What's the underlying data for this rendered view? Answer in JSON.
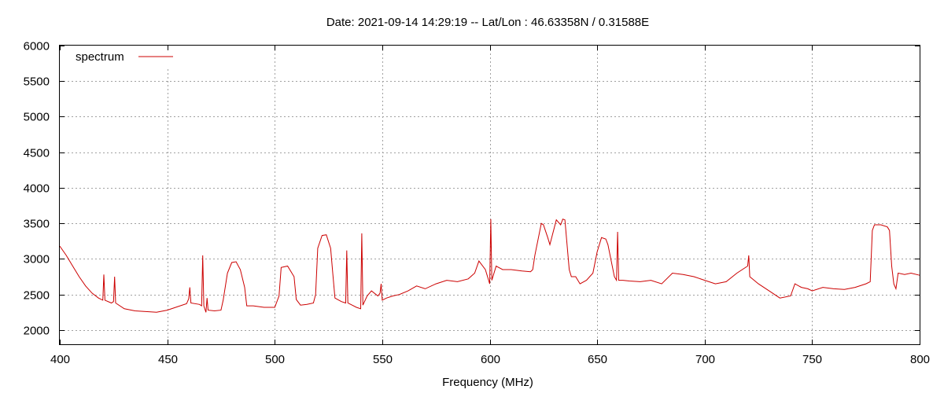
{
  "chart_data": {
    "type": "line",
    "title": "Date: 2021-09-14 14:29:19  --  Lat/Lon : 46.63358N / 0.31588E",
    "xlabel": "Frequency (MHz)",
    "ylabel": "",
    "xlim": [
      400,
      800
    ],
    "ylim": [
      1800,
      6000
    ],
    "xticks": [
      400,
      450,
      500,
      550,
      600,
      650,
      700,
      750,
      800
    ],
    "yticks": [
      2000,
      2500,
      3000,
      3500,
      4000,
      4500,
      5000,
      5500,
      6000
    ],
    "grid": true,
    "legend_position": "top-left",
    "series": [
      {
        "name": "spectrum",
        "color": "#cc0000",
        "x": [
          400,
          403,
          406,
          409,
          412,
          415,
          418,
          420,
          420.5,
          421,
          424,
          425,
          425.5,
          426,
          430,
          435,
          440,
          445,
          450,
          455,
          459,
          460,
          460.5,
          461,
          465,
          466,
          466.5,
          467,
          468,
          468.5,
          469,
          472,
          475,
          476,
          478,
          480,
          482,
          484,
          486,
          487,
          490,
          495,
          500,
          502,
          503,
          506,
          509,
          510,
          512,
          515,
          518,
          519,
          520,
          522,
          524,
          526,
          527,
          528,
          531,
          533,
          533.5,
          534,
          536,
          538,
          540,
          540.5,
          541,
          543,
          545,
          548,
          549,
          549.5,
          550,
          552,
          555,
          558,
          562,
          566,
          570,
          575,
          580,
          585,
          590,
          593,
          595,
          598,
          600,
          600.5,
          601,
          603,
          606,
          610,
          615,
          619,
          620,
          621,
          624,
          625,
          627,
          628,
          631,
          633,
          634,
          635,
          637,
          638,
          640,
          642,
          645,
          648,
          650,
          652,
          654,
          655,
          658,
          659,
          659.5,
          660,
          662,
          665,
          670,
          675,
          680,
          685,
          690,
          695,
          700,
          705,
          710,
          715,
          720,
          720.5,
          721,
          725,
          730,
          735,
          740,
          742,
          745,
          748,
          750,
          755,
          760,
          765,
          770,
          775,
          777,
          778,
          779,
          782,
          785,
          786,
          787,
          788,
          789,
          790,
          793,
          796,
          800
        ],
        "values": [
          3180,
          3050,
          2900,
          2750,
          2620,
          2520,
          2450,
          2420,
          2780,
          2420,
          2380,
          2400,
          2750,
          2380,
          2300,
          2270,
          2260,
          2250,
          2280,
          2330,
          2370,
          2440,
          2600,
          2380,
          2360,
          2340,
          3050,
          2340,
          2250,
          2450,
          2280,
          2270,
          2280,
          2420,
          2800,
          2950,
          2960,
          2850,
          2600,
          2340,
          2340,
          2320,
          2320,
          2480,
          2880,
          2900,
          2750,
          2430,
          2350,
          2360,
          2380,
          2500,
          3150,
          3330,
          3340,
          3150,
          2800,
          2450,
          2400,
          2380,
          3120,
          2380,
          2350,
          2320,
          2300,
          3360,
          2350,
          2480,
          2550,
          2480,
          2520,
          2650,
          2420,
          2450,
          2480,
          2500,
          2550,
          2620,
          2580,
          2650,
          2700,
          2680,
          2720,
          2800,
          2970,
          2850,
          2650,
          3560,
          2700,
          2900,
          2850,
          2850,
          2830,
          2820,
          2850,
          3050,
          3500,
          3480,
          3300,
          3200,
          3550,
          3480,
          3560,
          3550,
          2850,
          2750,
          2750,
          2650,
          2700,
          2800,
          3100,
          3300,
          3280,
          3200,
          2750,
          2700,
          3380,
          2700,
          2700,
          2690,
          2680,
          2700,
          2650,
          2800,
          2780,
          2750,
          2700,
          2650,
          2680,
          2800,
          2900,
          3050,
          2750,
          2650,
          2550,
          2450,
          2480,
          2650,
          2600,
          2580,
          2550,
          2600,
          2580,
          2570,
          2600,
          2650,
          2680,
          3400,
          3480,
          3480,
          3450,
          3400,
          2900,
          2650,
          2580,
          2800,
          2780,
          2800,
          2770
        ]
      }
    ]
  }
}
